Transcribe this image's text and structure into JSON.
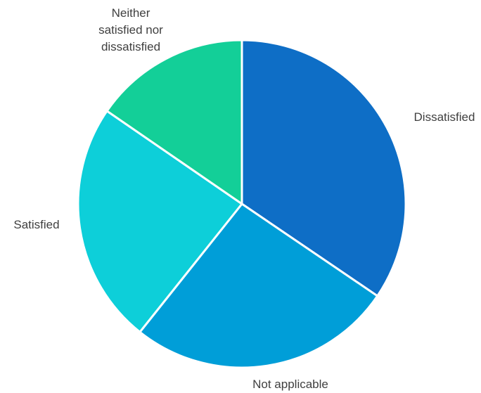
{
  "chart_data": {
    "type": "pie",
    "title": "",
    "start_angle_deg": 0,
    "direction": "clockwise",
    "legend": "none",
    "slices": [
      {
        "label": "Dissatisfied",
        "label_lines": [
          "Dissatisfied"
        ],
        "value": 34.5,
        "color": "#0E6EC6"
      },
      {
        "label": "Not applicable",
        "label_lines": [
          "Not applicable"
        ],
        "value": 26.2,
        "color": "#009ED8"
      },
      {
        "label": "Satisfied",
        "label_lines": [
          "Satisfied"
        ],
        "value": 23.9,
        "color": "#0DCFD9"
      },
      {
        "label": "Neither satisfied nor dissatisfied",
        "label_lines": [
          "Neither",
          "satisfied nor",
          "dissatisfied"
        ],
        "value": 15.4,
        "color": "#13CF98"
      }
    ]
  }
}
